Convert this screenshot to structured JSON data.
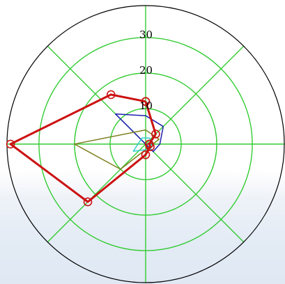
{
  "chart_data": {
    "type": "polar-line",
    "title": "",
    "angle_unit": "degrees",
    "radial_range": [
      0,
      39
    ],
    "radial_ticks": [
      10,
      20,
      30
    ],
    "radial_tick_labels": [
      "10",
      "20",
      "30"
    ],
    "angular_grid_degrees": [
      0,
      45,
      90,
      135,
      180,
      225,
      270,
      315
    ],
    "grid": true,
    "legend": "none",
    "series": [
      {
        "points": [
          [
            7,
            45
          ],
          [
            8,
            90
          ],
          [
            12,
            135
          ],
          [
            3,
            315
          ],
          [
            4,
            0
          ]
        ],
        "color": "#1f1fb0",
        "marker": "none"
      },
      {
        "points": [
          [
            4,
            90
          ],
          [
            20,
            180
          ],
          [
            10,
            225
          ],
          [
            4,
            20
          ]
        ],
        "color": "#7f7f1f",
        "marker": "none"
      },
      {
        "points": [
          [
            2,
            60
          ],
          [
            2,
            120
          ],
          [
            4,
            210
          ],
          [
            2,
            315
          ],
          [
            2,
            30
          ]
        ],
        "color": "#33cccc",
        "marker": "none"
      },
      {
        "points": [
          [
            12,
            90
          ],
          [
            17,
            125
          ],
          [
            38,
            180
          ],
          [
            23,
            225
          ],
          [
            3,
            270
          ],
          [
            1.5,
            330
          ],
          [
            1,
            0
          ],
          [
            4,
            45
          ],
          [
            12,
            90
          ]
        ],
        "color": "#cc1111",
        "marker": "circle"
      }
    ],
    "axis_frame_color": "#000000",
    "grid_color": "#33cc33"
  }
}
